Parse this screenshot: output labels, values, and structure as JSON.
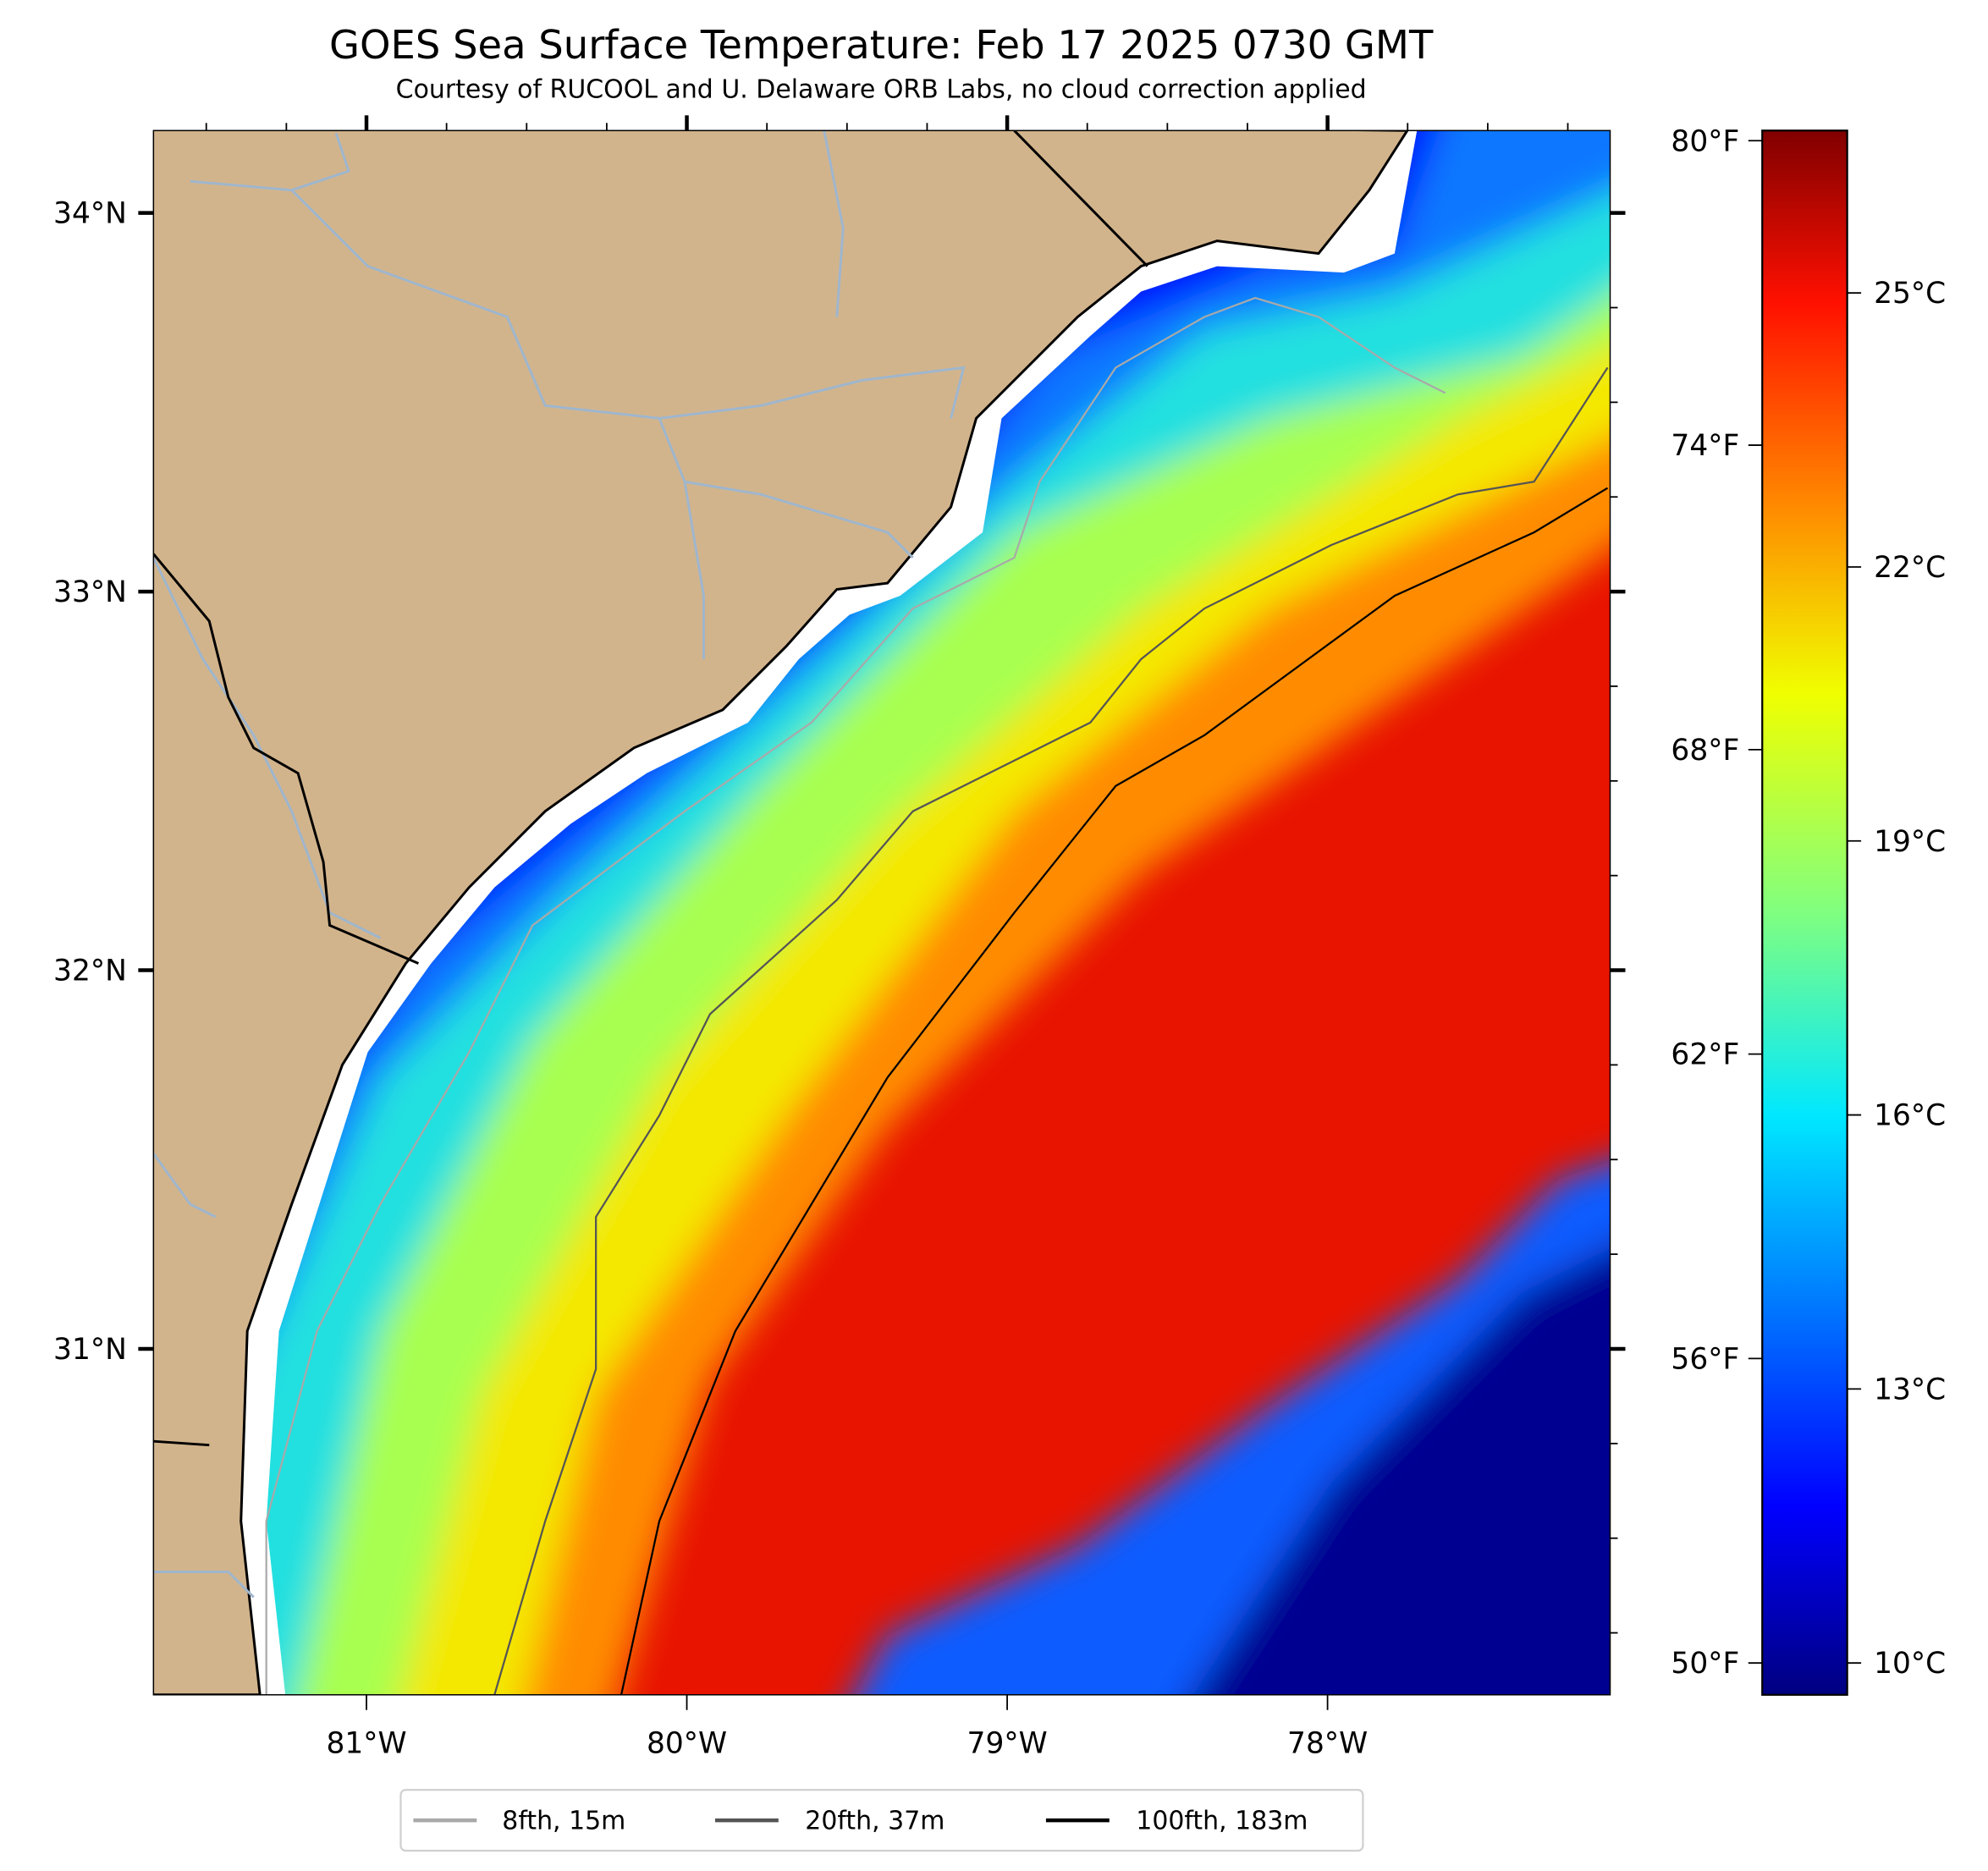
{
  "chart_data": {
    "type": "heatmap",
    "title": "GOES Sea Surface Temperature: Feb 17 2025 0730 GMT",
    "subtitle": "Courtesy of RUCOOL and U. Delaware ORB Labs, no cloud correction applied",
    "xlabel": "",
    "ylabel": "",
    "xlim": [
      -81.67,
      -77.12
    ],
    "ylim": [
      30.03,
      34.22
    ],
    "x_ticks": [
      {
        "value": -81,
        "label": "81°W"
      },
      {
        "value": -80,
        "label": "80°W"
      },
      {
        "value": -79,
        "label": "79°W"
      },
      {
        "value": -78,
        "label": "78°W"
      }
    ],
    "y_ticks": [
      {
        "value": 34,
        "label": "34°N"
      },
      {
        "value": 33,
        "label": "33°N"
      },
      {
        "value": 32,
        "label": "32°N"
      },
      {
        "value": 31,
        "label": "31°N"
      }
    ],
    "colorbar": {
      "cmap": "jet",
      "range_f": [
        49.4,
        80.2
      ],
      "f_ticks": [
        {
          "value": 80,
          "label": "80°F"
        },
        {
          "value": 74,
          "label": "74°F"
        },
        {
          "value": 68,
          "label": "68°F"
        },
        {
          "value": 62,
          "label": "62°F"
        },
        {
          "value": 56,
          "label": "56°F"
        },
        {
          "value": 50,
          "label": "50°F"
        }
      ],
      "c_ticks": [
        {
          "value": 25,
          "label": "25°C"
        },
        {
          "value": 22,
          "label": "22°C"
        },
        {
          "value": 19,
          "label": "19°C"
        },
        {
          "value": 16,
          "label": "16°C"
        },
        {
          "value": 13,
          "label": "13°C"
        },
        {
          "value": 10,
          "label": "10°C"
        }
      ]
    },
    "legend": {
      "placement": "bottom-center",
      "entries": [
        {
          "label": "8fth, 15m",
          "color": "#a9a9a9"
        },
        {
          "label": "20fth, 37m",
          "color": "#555555"
        },
        {
          "label": "100fth, 183m",
          "color": "#000000"
        }
      ]
    },
    "colors": {
      "land": "#d2b48c",
      "no_data": "#ffffff",
      "rivers": "#9fb6cd"
    }
  }
}
